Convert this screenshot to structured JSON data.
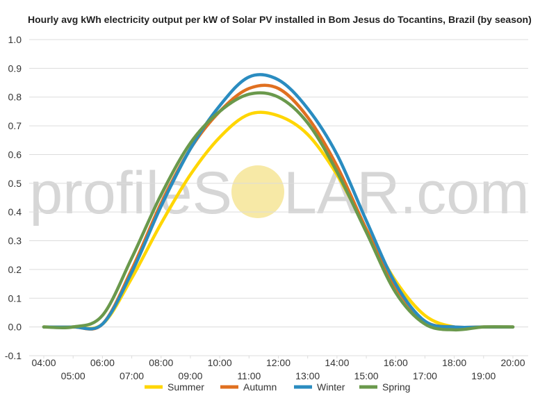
{
  "watermark": {
    "left": "profileS",
    "right": "LAR.com",
    "sun_color": "#f7e9a6"
  },
  "chart_data": {
    "type": "line",
    "title": "Hourly avg kWh electricity output per kW of Solar PV installed in Bom Jesus do Tocantins, Brazil (by season)",
    "xlabel": "",
    "ylabel": "",
    "ylim": [
      -0.1,
      1.0
    ],
    "yticks": [
      "-0.1",
      "0.0",
      "0.1",
      "0.2",
      "0.3",
      "0.4",
      "0.5",
      "0.6",
      "0.7",
      "0.8",
      "0.9",
      "1.0"
    ],
    "x": [
      "04:00",
      "05:00",
      "06:00",
      "07:00",
      "08:00",
      "09:00",
      "10:00",
      "11:00",
      "12:00",
      "13:00",
      "14:00",
      "15:00",
      "16:00",
      "17:00",
      "18:00",
      "19:00",
      "20:00"
    ],
    "grid": true,
    "legend_position": "bottom",
    "series": [
      {
        "name": "Summer",
        "color": "#ffd600",
        "values": [
          0.0,
          0.0,
          0.01,
          0.17,
          0.36,
          0.53,
          0.66,
          0.74,
          0.735,
          0.67,
          0.53,
          0.34,
          0.16,
          0.04,
          0.0,
          0.0,
          0.0
        ]
      },
      {
        "name": "Autumn",
        "color": "#e07020",
        "values": [
          0.0,
          0.0,
          0.01,
          0.2,
          0.43,
          0.62,
          0.75,
          0.83,
          0.83,
          0.73,
          0.56,
          0.34,
          0.14,
          0.02,
          0.0,
          0.0,
          0.0
        ]
      },
      {
        "name": "Winter",
        "color": "#2a8cc0",
        "values": [
          0.0,
          0.0,
          0.01,
          0.19,
          0.42,
          0.62,
          0.77,
          0.87,
          0.86,
          0.76,
          0.6,
          0.37,
          0.15,
          0.02,
          0.0,
          0.0,
          0.0
        ]
      },
      {
        "name": "Spring",
        "color": "#6a994c",
        "values": [
          0.0,
          0.0,
          0.04,
          0.24,
          0.46,
          0.64,
          0.75,
          0.81,
          0.8,
          0.71,
          0.54,
          0.33,
          0.12,
          0.01,
          -0.01,
          0.0,
          0.0
        ]
      }
    ]
  }
}
